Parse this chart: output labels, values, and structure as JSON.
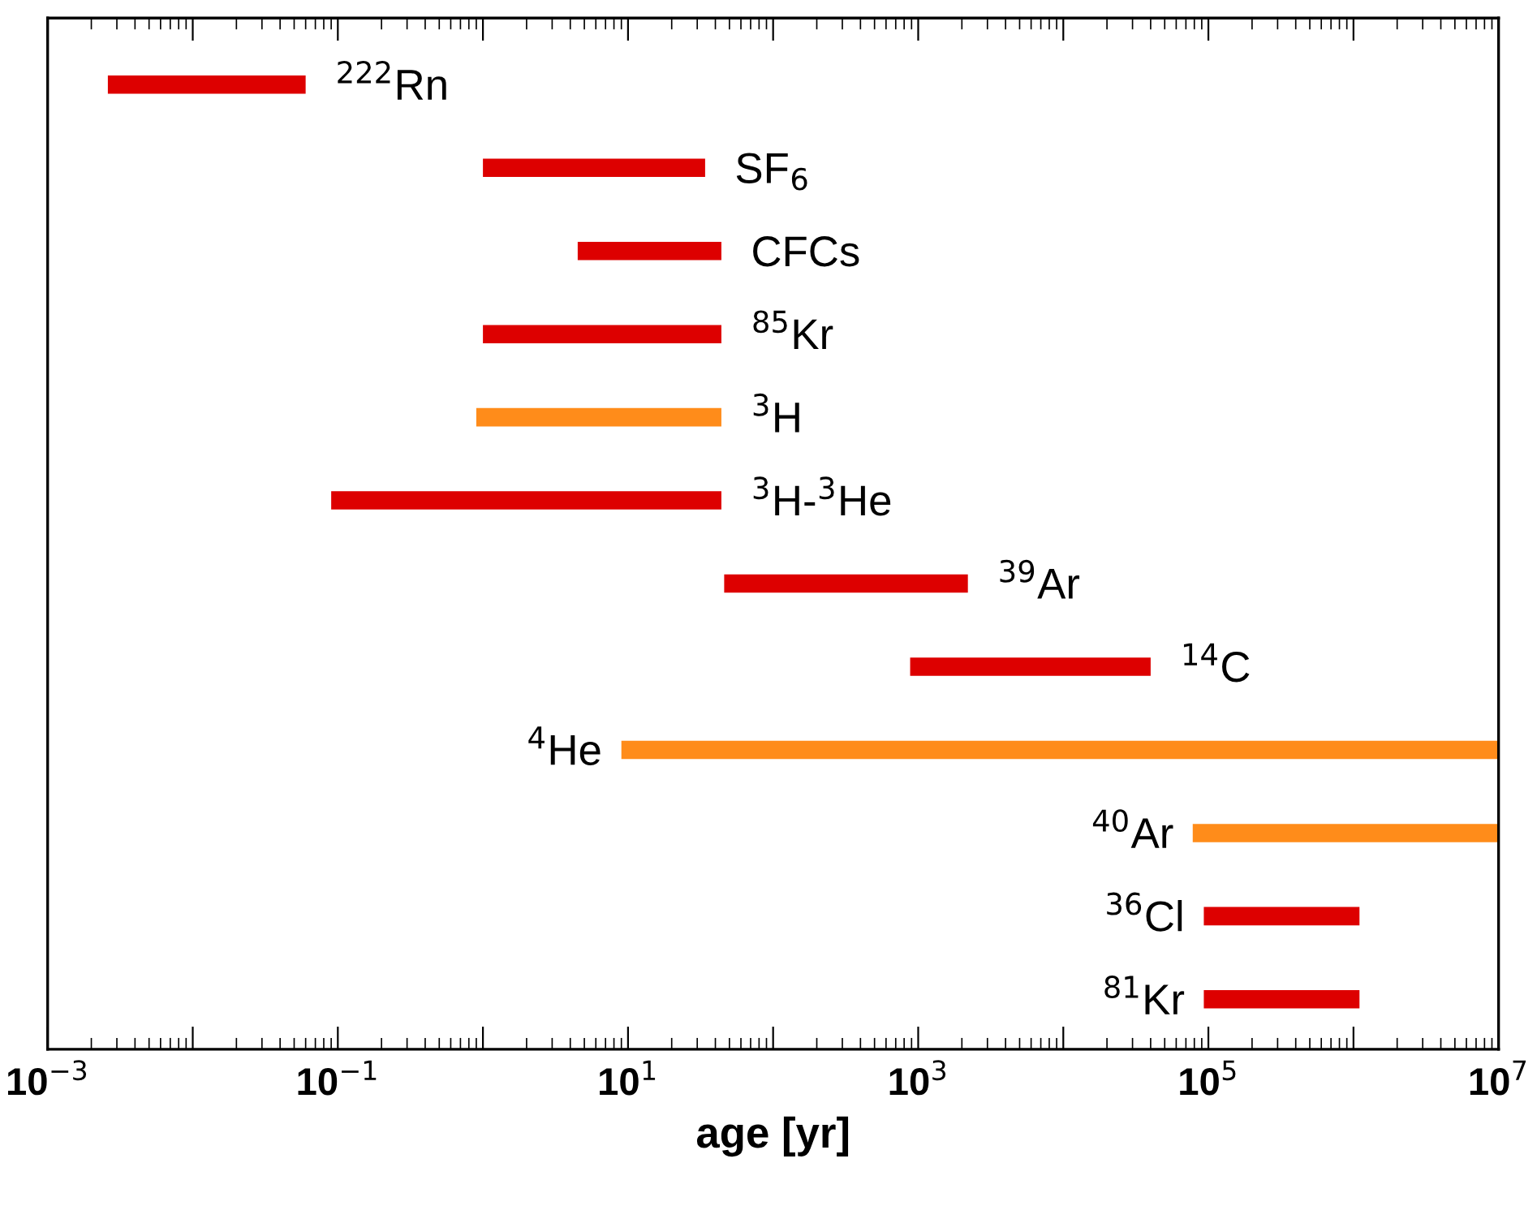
{
  "chart_data": {
    "type": "bar",
    "orientation": "horizontal",
    "xlabel": "age [yr]",
    "log": "x",
    "grid": false,
    "tick_labels": "x",
    "categories": [
      "$^{222}$Rn",
      "SF$_{6}$",
      "CFCs",
      "$^{85}$Kr",
      "$^{3}$H",
      "$^{3}$H-$^{3}$He",
      "$^{39}$Ar",
      "$^{14}$C",
      "$^{4}$He",
      "$^{40}$Ar",
      "$^{36}$Cl",
      "$^{81}$Kr"
    ],
    "base": [
      0.0026,
      1,
      4.5,
      1,
      0.9,
      0.09,
      46,
      880,
      9,
      78000,
      93000,
      93000
    ],
    "values": [
      0.0574,
      33,
      39.5,
      43,
      43.1,
      43.91,
      2154,
      39120,
      9999991,
      9922000,
      1007000,
      1007000
    ],
    "colors": [
      "#dd0000",
      "#dd0000",
      "#dd0000",
      "#dd0000",
      "#ff8c1a",
      "#dd0000",
      "#dd0000",
      "#dd0000",
      "#ff8c1a",
      "#ff8c1a",
      "#dd0000",
      "#dd0000"
    ],
    "xlim": [
      0.001,
      10000000
    ],
    "xticks": [
      {
        "value": 0.001,
        "label": "10$^{−3}$"
      },
      {
        "value": 0.01,
        "label": null
      },
      {
        "value": 0.1,
        "label": "10$^{−1}$"
      },
      {
        "value": 1,
        "label": null
      },
      {
        "value": 10,
        "label": "10$^{1}$"
      },
      {
        "value": 100,
        "label": null
      },
      {
        "value": 1000,
        "label": "10$^{3}$"
      },
      {
        "value": 10000,
        "label": null
      },
      {
        "value": 100000,
        "label": "10$^{5}$"
      },
      {
        "value": 1000000,
        "label": null
      },
      {
        "value": 10000000,
        "label": "10$^{7}$"
      }
    ]
  }
}
